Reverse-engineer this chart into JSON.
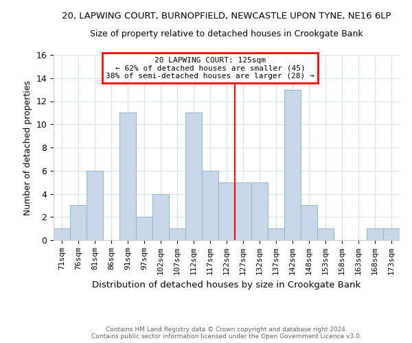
{
  "title1": "20, LAPWING COURT, BURNOPFIELD, NEWCASTLE UPON TYNE, NE16 6LP",
  "title2": "Size of property relative to detached houses in Crookgate Bank",
  "xlabel": "Distribution of detached houses by size in Crookgate Bank",
  "ylabel": "Number of detached properties",
  "bin_labels": [
    "71sqm",
    "76sqm",
    "81sqm",
    "86sqm",
    "91sqm",
    "97sqm",
    "102sqm",
    "107sqm",
    "112sqm",
    "117sqm",
    "122sqm",
    "127sqm",
    "132sqm",
    "137sqm",
    "142sqm",
    "148sqm",
    "153sqm",
    "158sqm",
    "163sqm",
    "168sqm",
    "173sqm"
  ],
  "bar_heights": [
    1,
    3,
    6,
    0,
    11,
    2,
    4,
    1,
    11,
    6,
    5,
    5,
    5,
    1,
    13,
    3,
    1,
    0,
    0,
    1,
    1
  ],
  "bar_color": "#c8d8ea",
  "bar_edge_color": "#9ab8cc",
  "property_line_x": 10.5,
  "annotation_title": "20 LAPWING COURT: 125sqm",
  "annotation_line1": "← 62% of detached houses are smaller (45)",
  "annotation_line2": "38% of semi-detached houses are larger (28) →",
  "annotation_box_color": "white",
  "annotation_box_edge": "red",
  "property_line_color": "red",
  "ylim": [
    0,
    16
  ],
  "yticks": [
    0,
    2,
    4,
    6,
    8,
    10,
    12,
    14,
    16
  ],
  "footer1": "Contains HM Land Registry data © Crown copyright and database right 2024.",
  "footer2": "Contains public sector information licensed under the Open Government Licence v3.0.",
  "bg_color": "white",
  "grid_color": "#d8e4f0"
}
